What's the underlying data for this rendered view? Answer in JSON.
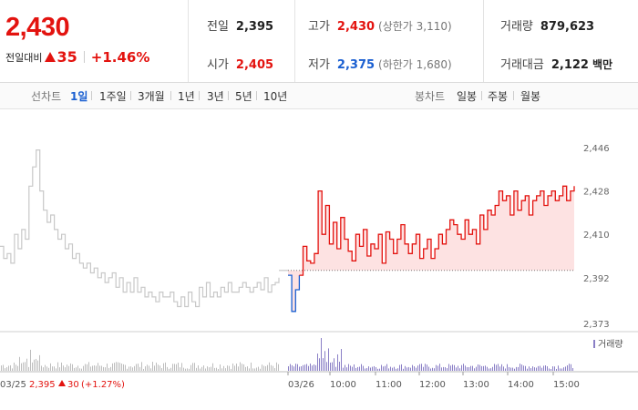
{
  "summary": {
    "price": "2,430",
    "change_label": "전일대비",
    "change_value": "35",
    "change_pct": "+1.46%"
  },
  "stats": {
    "prev_close": {
      "label": "전일",
      "value": "2,395"
    },
    "open": {
      "label": "시가",
      "value": "2,405"
    },
    "high": {
      "label": "고가",
      "value": "2,430",
      "sub": "(상한가 3,110)"
    },
    "low": {
      "label": "저가",
      "value": "2,375",
      "sub": "(하한가 1,680)"
    },
    "volume": {
      "label": "거래량",
      "value": "879,623"
    },
    "amount": {
      "label": "거래대금",
      "value": "2,122",
      "unit": "백만"
    }
  },
  "tabs": {
    "line_label": "선차트",
    "line_tabs": [
      "1일",
      "1주일",
      "3개월",
      "1년",
      "3년",
      "5년",
      "10년"
    ],
    "line_active": "1일",
    "candle_label": "봉차트",
    "candle_tabs": [
      "일봉",
      "주봉",
      "월봉"
    ]
  },
  "colors": {
    "up": "#e3130f",
    "down": "#1a5fd1",
    "prev_day_line": "#c8c8c8",
    "fill": "#fde2e2",
    "volume": "#8a7fc6"
  },
  "chart_data": {
    "type": "line",
    "y_ticks": [
      "2,446",
      "2,428",
      "2,410",
      "2,392",
      "2,373"
    ],
    "ylim": [
      2373,
      2446
    ],
    "baseline": 2395,
    "x_tick_labels": [
      "03/25",
      "03/26",
      "10:00",
      "11:00",
      "12:00",
      "13:00",
      "14:00",
      "15:00"
    ],
    "prev_day_caption": {
      "date": "03/25",
      "close": "2,395",
      "change": "30",
      "pct": "(+1.27%)"
    },
    "volume_legend": "거래량",
    "prev_day": [
      2405,
      2400,
      2402,
      2398,
      2410,
      2404,
      2412,
      2408,
      2430,
      2438,
      2445,
      2428,
      2420,
      2415,
      2418,
      2412,
      2408,
      2410,
      2404,
      2406,
      2400,
      2402,
      2398,
      2396,
      2398,
      2394,
      2396,
      2392,
      2394,
      2390,
      2392,
      2394,
      2388,
      2392,
      2386,
      2390,
      2386,
      2392,
      2386,
      2388,
      2384,
      2386,
      2384,
      2382,
      2386,
      2384,
      2384,
      2386,
      2382,
      2380,
      2384,
      2380,
      2386,
      2382,
      2380,
      2388,
      2384,
      2390,
      2384,
      2386,
      2384,
      2388,
      2386,
      2390,
      2386,
      2386,
      2388,
      2390,
      2388,
      2386,
      2388,
      2390,
      2387,
      2392,
      2386,
      2389,
      2390,
      2392
    ],
    "today": [
      2393,
      2378,
      2387,
      2393,
      2405,
      2399,
      2398,
      2402,
      2428,
      2410,
      2422,
      2406,
      2415,
      2404,
      2417,
      2408,
      2403,
      2399,
      2410,
      2405,
      2412,
      2401,
      2406,
      2404,
      2410,
      2398,
      2411,
      2408,
      2402,
      2408,
      2414,
      2406,
      2402,
      2406,
      2410,
      2400,
      2404,
      2408,
      2400,
      2404,
      2410,
      2406,
      2412,
      2416,
      2414,
      2410,
      2408,
      2416,
      2410,
      2412,
      2406,
      2418,
      2412,
      2420,
      2418,
      2422,
      2428,
      2424,
      2426,
      2418,
      2428,
      2420,
      2424,
      2426,
      2418,
      2424,
      2426,
      2428,
      2422,
      2426,
      2428,
      2424,
      2426,
      2430,
      2424,
      2428,
      2430
    ]
  }
}
